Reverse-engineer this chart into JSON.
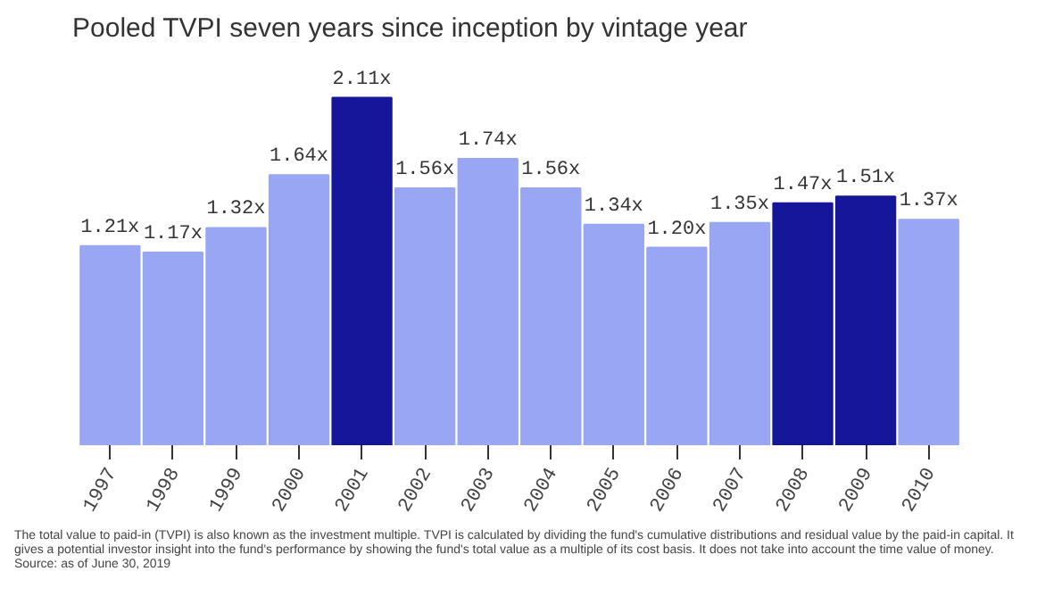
{
  "chart_data": {
    "type": "bar",
    "title": "Pooled TVPI seven years since inception by vintage year",
    "categories": [
      "1997",
      "1998",
      "1999",
      "2000",
      "2001",
      "2002",
      "2003",
      "2004",
      "2005",
      "2006",
      "2007",
      "2008",
      "2009",
      "2010"
    ],
    "values": [
      1.21,
      1.17,
      1.32,
      1.64,
      2.11,
      1.56,
      1.74,
      1.56,
      1.34,
      1.2,
      1.35,
      1.47,
      1.51,
      1.37
    ],
    "value_labels": [
      "1.21x",
      "1.17x",
      "1.32x",
      "1.64x",
      "2.11x",
      "1.56x",
      "1.74x",
      "1.56x",
      "1.34x",
      "1.20x",
      "1.35x",
      "1.47x",
      "1.51x",
      "1.37x"
    ],
    "colors": [
      "#98a6f4",
      "#98a6f4",
      "#98a6f4",
      "#98a6f4",
      "#16169a",
      "#98a6f4",
      "#98a6f4",
      "#98a6f4",
      "#98a6f4",
      "#98a6f4",
      "#98a6f4",
      "#16169a",
      "#16169a",
      "#98a6f4"
    ],
    "grid": false,
    "annotations": [
      "The total value to paid-in (TVPI) is also known as the investment multiple. TVPI is calculated by dividing the fund's cumulative distributions and residual value by the paid-in capital. It gives a potential investor insight into the fund's performance by showing the fund's total value as a multiple of its cost basis. It does not take into account the time value of money.",
      "Source: as of June 30, 2019"
    ]
  }
}
